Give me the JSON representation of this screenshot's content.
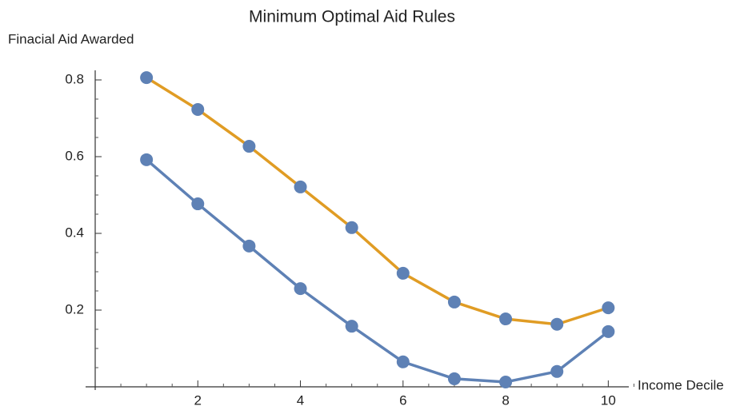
{
  "chart_data": {
    "type": "line",
    "title": "Minimum Optimal Aid Rules",
    "y_label": "Finacial Aid Awarded",
    "x_label": "Income Decile",
    "x": [
      1,
      2,
      3,
      4,
      5,
      6,
      7,
      8,
      9,
      10
    ],
    "series": [
      {
        "color": "#e09c24",
        "marker_color": "#5e81b5",
        "values": [
          0.806,
          0.723,
          0.627,
          0.521,
          0.415,
          0.296,
          0.221,
          0.177,
          0.163,
          0.206
        ]
      },
      {
        "color": "#5e81b5",
        "marker_color": "#5e81b5",
        "values": [
          0.592,
          0.477,
          0.367,
          0.256,
          0.158,
          0.065,
          0.021,
          0.0125,
          0.04,
          0.144
        ]
      }
    ],
    "xlim": [
      0,
      10.4
    ],
    "ylim": [
      0,
      0.825
    ],
    "xticks": [
      2,
      4,
      6,
      8,
      10
    ],
    "yticks": [
      0.2,
      0.4,
      0.6,
      0.8
    ],
    "xminorticks": [
      0.5,
      1,
      1.5,
      2.5,
      3,
      3.5,
      4.5,
      5,
      5.5,
      6.5,
      7,
      7.5,
      8.5,
      9,
      9.5,
      10.5
    ],
    "yminorticks": [
      0.05,
      0.1,
      0.15,
      0.25,
      0.3,
      0.35,
      0.45,
      0.5,
      0.55,
      0.65,
      0.7,
      0.75
    ],
    "grid": false
  }
}
